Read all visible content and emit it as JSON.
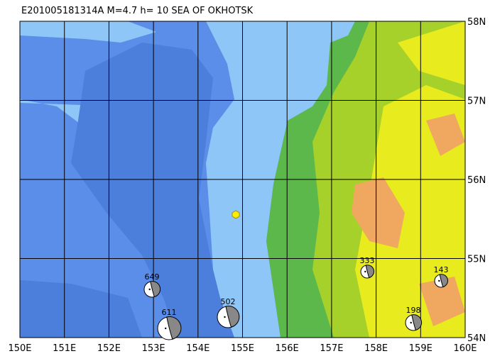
{
  "title": "E201005181314A M=4.7 h= 10 SEA OF OKHOTSK",
  "lon_labels": [
    "150E",
    "151E",
    "152E",
    "153E",
    "154E",
    "155E",
    "156E",
    "157E",
    "158E",
    "159E",
    "160E"
  ],
  "lat_labels": [
    "54N",
    "55N",
    "56N",
    "57N",
    "58N"
  ],
  "events": [
    {
      "depth": "649"
    },
    {
      "depth": "611"
    },
    {
      "depth": "502"
    },
    {
      "depth": "333"
    },
    {
      "depth": "198"
    },
    {
      "depth": "143"
    }
  ]
}
